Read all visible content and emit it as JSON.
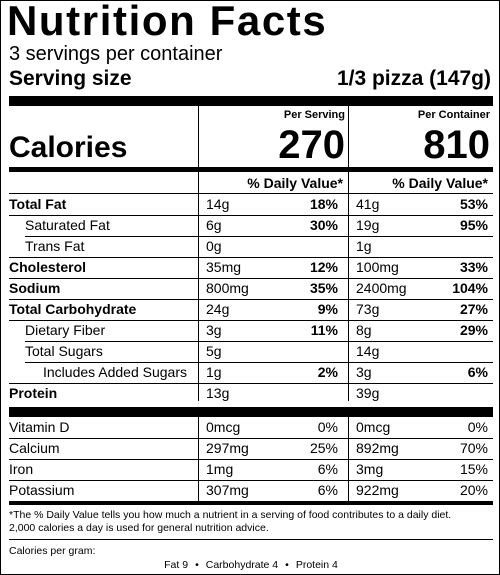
{
  "label": {
    "title": "Nutrition Facts",
    "servings_per_container": "3 servings per container",
    "serving_size_label": "Serving size",
    "serving_size_value": "1/3 pizza (147g)",
    "per_serving_header": "Per Serving",
    "per_container_header": "Per Container",
    "calories_label": "Calories",
    "calories_per_serving": "270",
    "calories_per_container": "810",
    "dv_header": "% Daily Value*",
    "nutrients": [
      {
        "name": "Total Fat",
        "bold": true,
        "indent": 0,
        "serving_amount": "14g",
        "serving_dv": "18%",
        "container_amount": "41g",
        "container_dv": "53%"
      },
      {
        "name": "Saturated Fat",
        "bold": false,
        "indent": 1,
        "serving_amount": "6g",
        "serving_dv": "30%",
        "container_amount": "19g",
        "container_dv": "95%"
      },
      {
        "name": "Trans Fat",
        "bold": false,
        "indent": 1,
        "serving_amount": "0g",
        "serving_dv": "",
        "container_amount": "1g",
        "container_dv": ""
      },
      {
        "name": "Cholesterol",
        "bold": true,
        "indent": 0,
        "serving_amount": "35mg",
        "serving_dv": "12%",
        "container_amount": "100mg",
        "container_dv": "33%"
      },
      {
        "name": "Sodium",
        "bold": true,
        "indent": 0,
        "serving_amount": "800mg",
        "serving_dv": "35%",
        "container_amount": "2400mg",
        "container_dv": "104%"
      },
      {
        "name": "Total Carbohydrate",
        "bold": true,
        "indent": 0,
        "serving_amount": "24g",
        "serving_dv": "9%",
        "container_amount": "73g",
        "container_dv": "27%"
      },
      {
        "name": "Dietary Fiber",
        "bold": false,
        "indent": 1,
        "serving_amount": "3g",
        "serving_dv": "11%",
        "container_amount": "8g",
        "container_dv": "29%"
      },
      {
        "name": "Total Sugars",
        "bold": false,
        "indent": 1,
        "serving_amount": "5g",
        "serving_dv": "",
        "container_amount": "14g",
        "container_dv": ""
      },
      {
        "name": "Includes Added Sugars",
        "bold": false,
        "indent": 2,
        "serving_amount": "1g",
        "serving_dv": "2%",
        "container_amount": "3g",
        "container_dv": "6%"
      },
      {
        "name": "Protein",
        "bold": true,
        "indent": 0,
        "serving_amount": "13g",
        "serving_dv": "",
        "container_amount": "39g",
        "container_dv": ""
      }
    ],
    "vitamins": [
      {
        "name": "Vitamin D",
        "serving_amount": "0mcg",
        "serving_dv": "0%",
        "container_amount": "0mcg",
        "container_dv": "0%"
      },
      {
        "name": "Calcium",
        "serving_amount": "297mg",
        "serving_dv": "25%",
        "container_amount": "892mg",
        "container_dv": "70%"
      },
      {
        "name": "Iron",
        "serving_amount": "1mg",
        "serving_dv": "6%",
        "container_amount": "3mg",
        "container_dv": "15%"
      },
      {
        "name": "Potassium",
        "serving_amount": "307mg",
        "serving_dv": "6%",
        "container_amount": "922mg",
        "container_dv": "20%"
      }
    ],
    "footnote_line1": "*The % Daily Value tells you how much a nutrient in a serving of food contributes to a daily diet.",
    "footnote_line2": "2,000 calories a day is used for general nutrition advice.",
    "calories_per_gram_label": "Calories per gram:",
    "calories_per_gram": {
      "fat": "Fat 9",
      "carbohydrate": "Carbohydrate 4",
      "protein": "Protein 4",
      "separator": "•"
    }
  }
}
